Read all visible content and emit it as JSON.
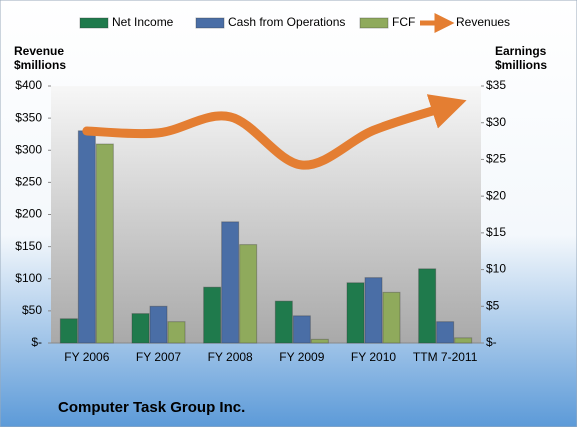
{
  "chart_data": {
    "type": "bar",
    "title": "Computer Task Group Inc.",
    "ylabel": [
      "Revenue",
      "$millions"
    ],
    "y2label": [
      "Earnings",
      "$millions"
    ],
    "categories": [
      "FY 2006",
      "FY 2007",
      "FY 2008",
      "FY 2009",
      "FY 2010",
      "TTM 7-2011"
    ],
    "series": [
      {
        "name": "Net Income",
        "color": "#1f7a4c",
        "axis": "y2",
        "values": [
          3.3,
          4.0,
          7.6,
          5.7,
          8.2,
          10.1
        ]
      },
      {
        "name": "Cash from Operations",
        "color": "#4a6ea6",
        "axis": "y2",
        "values": [
          28.9,
          5.0,
          16.5,
          3.7,
          8.9,
          2.9
        ]
      },
      {
        "name": "FCF",
        "color": "#8faa5c",
        "axis": "y2",
        "values": [
          27.1,
          2.9,
          13.4,
          0.5,
          6.9,
          0.7
        ]
      },
      {
        "name": "Revenues",
        "color": "#e47e32",
        "type": "line",
        "values": [
          330,
          327,
          352,
          277,
          331,
          367
        ]
      }
    ],
    "ylim": [
      0,
      400
    ],
    "yticks": [
      {
        "value": 0,
        "label": "$-"
      },
      {
        "value": 50,
        "label": "$50"
      },
      {
        "value": 100,
        "label": "$100"
      },
      {
        "value": 150,
        "label": "$150"
      },
      {
        "value": 200,
        "label": "$200"
      },
      {
        "value": 250,
        "label": "$250"
      },
      {
        "value": 300,
        "label": "$300"
      },
      {
        "value": 350,
        "label": "$350"
      },
      {
        "value": 400,
        "label": "$400"
      }
    ],
    "y2lim": [
      0,
      35
    ],
    "y2ticks": [
      {
        "value": 0,
        "label": "$-"
      },
      {
        "value": 5,
        "label": "$5"
      },
      {
        "value": 10,
        "label": "$10"
      },
      {
        "value": 15,
        "label": "$15"
      },
      {
        "value": 20,
        "label": "$20"
      },
      {
        "value": 25,
        "label": "$25"
      },
      {
        "value": 30,
        "label": "$30"
      },
      {
        "value": 35,
        "label": "$35"
      }
    ],
    "grid": false,
    "legend": "top"
  }
}
